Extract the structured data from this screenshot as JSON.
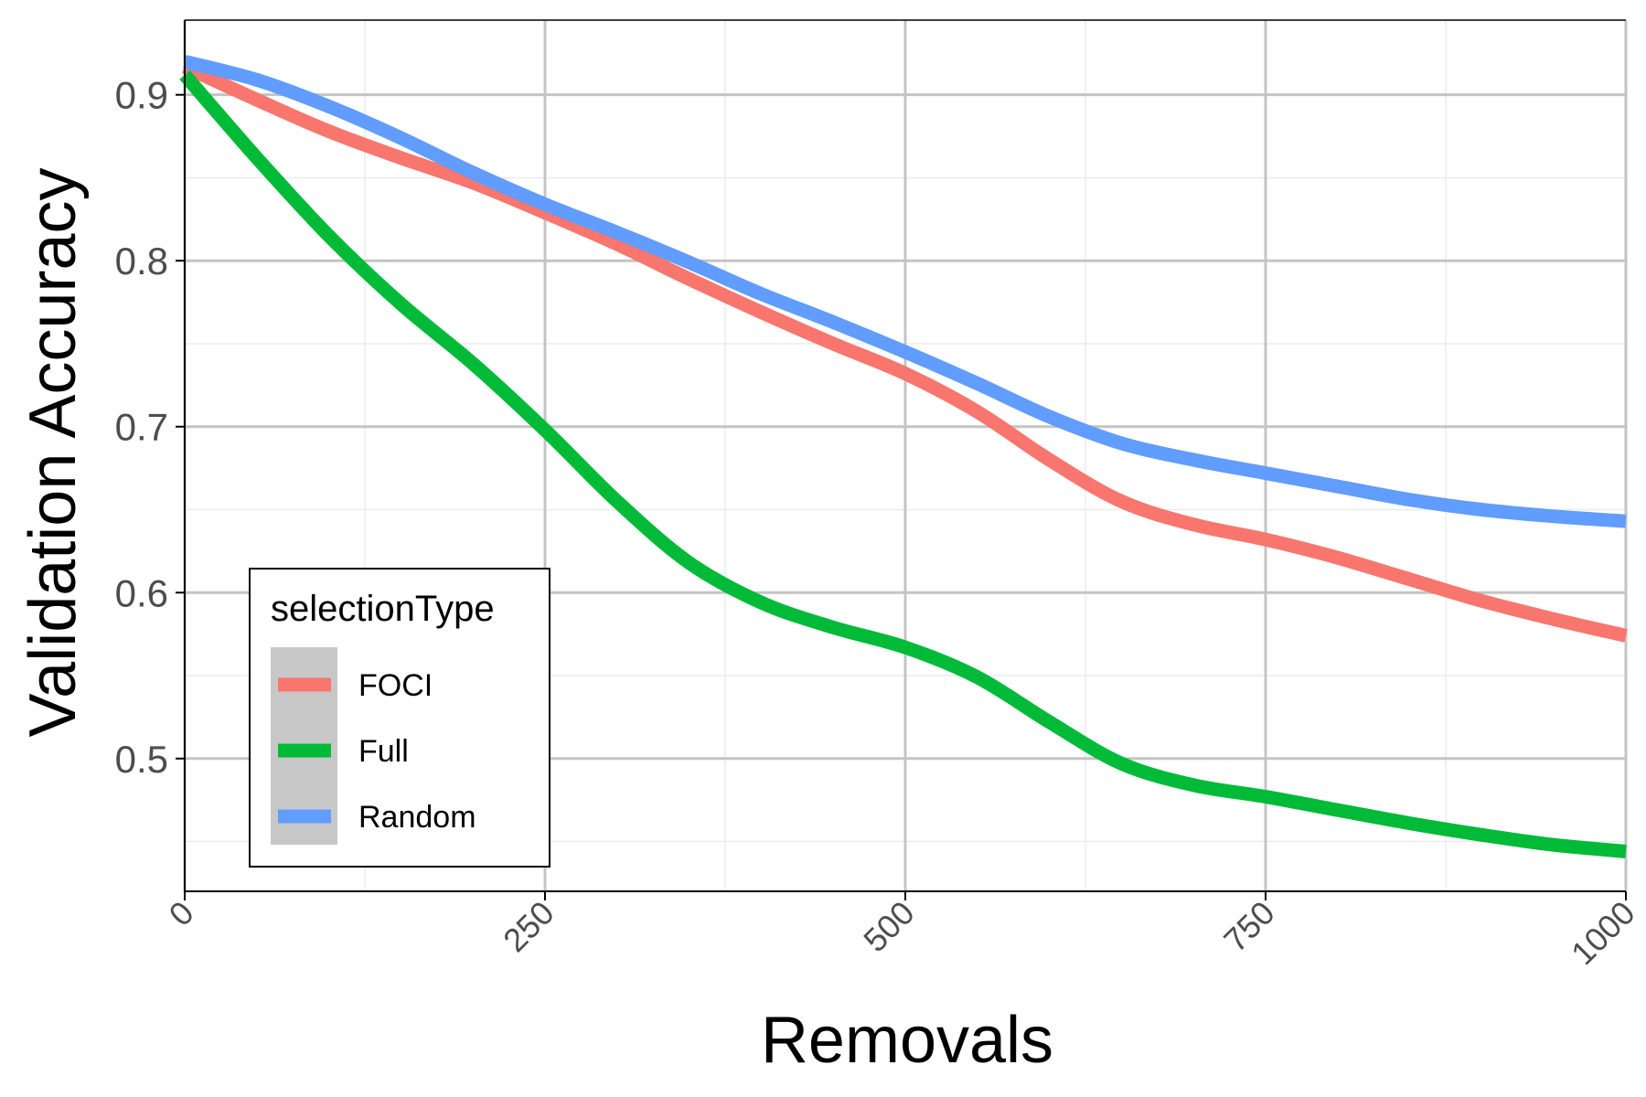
{
  "chart_data": {
    "type": "line",
    "xlabel": "Removals",
    "ylabel": "Validation Accuracy",
    "xlim": [
      0,
      1000
    ],
    "ylim": [
      0.42,
      0.945
    ],
    "x_ticks": [
      0,
      250,
      500,
      750,
      1000
    ],
    "x_tick_labels": [
      "0",
      "250",
      "500",
      "750",
      "1000"
    ],
    "y_ticks": [
      0.5,
      0.6,
      0.7,
      0.8,
      0.9
    ],
    "y_tick_labels": [
      "0.5",
      "0.6",
      "0.7",
      "0.8",
      "0.9"
    ],
    "grid": true,
    "legend": {
      "title": "selectionType",
      "position": "bottom-left"
    },
    "series": [
      {
        "name": "FOCI",
        "color": "#F8766D",
        "x": [
          0,
          50,
          100,
          150,
          200,
          250,
          300,
          350,
          400,
          450,
          500,
          550,
          600,
          650,
          700,
          750,
          800,
          850,
          900,
          950,
          1000
        ],
        "y": [
          0.917,
          0.897,
          0.878,
          0.862,
          0.847,
          0.829,
          0.81,
          0.789,
          0.769,
          0.75,
          0.732,
          0.709,
          0.68,
          0.655,
          0.641,
          0.632,
          0.621,
          0.608,
          0.595,
          0.584,
          0.574
        ]
      },
      {
        "name": "Full",
        "color": "#00BA38",
        "x": [
          0,
          50,
          100,
          150,
          200,
          250,
          300,
          350,
          400,
          450,
          500,
          550,
          600,
          650,
          700,
          750,
          800,
          850,
          900,
          950,
          1000
        ],
        "y": [
          0.912,
          0.862,
          0.815,
          0.774,
          0.738,
          0.698,
          0.655,
          0.618,
          0.594,
          0.579,
          0.567,
          0.549,
          0.522,
          0.497,
          0.484,
          0.477,
          0.469,
          0.461,
          0.454,
          0.448,
          0.444
        ]
      },
      {
        "name": "Random",
        "color": "#619CFF",
        "x": [
          0,
          50,
          100,
          150,
          200,
          250,
          300,
          350,
          400,
          450,
          500,
          550,
          600,
          650,
          700,
          750,
          800,
          850,
          900,
          950,
          1000
        ],
        "y": [
          0.92,
          0.909,
          0.893,
          0.874,
          0.853,
          0.834,
          0.817,
          0.799,
          0.78,
          0.763,
          0.745,
          0.726,
          0.706,
          0.69,
          0.68,
          0.672,
          0.664,
          0.656,
          0.65,
          0.646,
          0.643
        ]
      }
    ]
  }
}
